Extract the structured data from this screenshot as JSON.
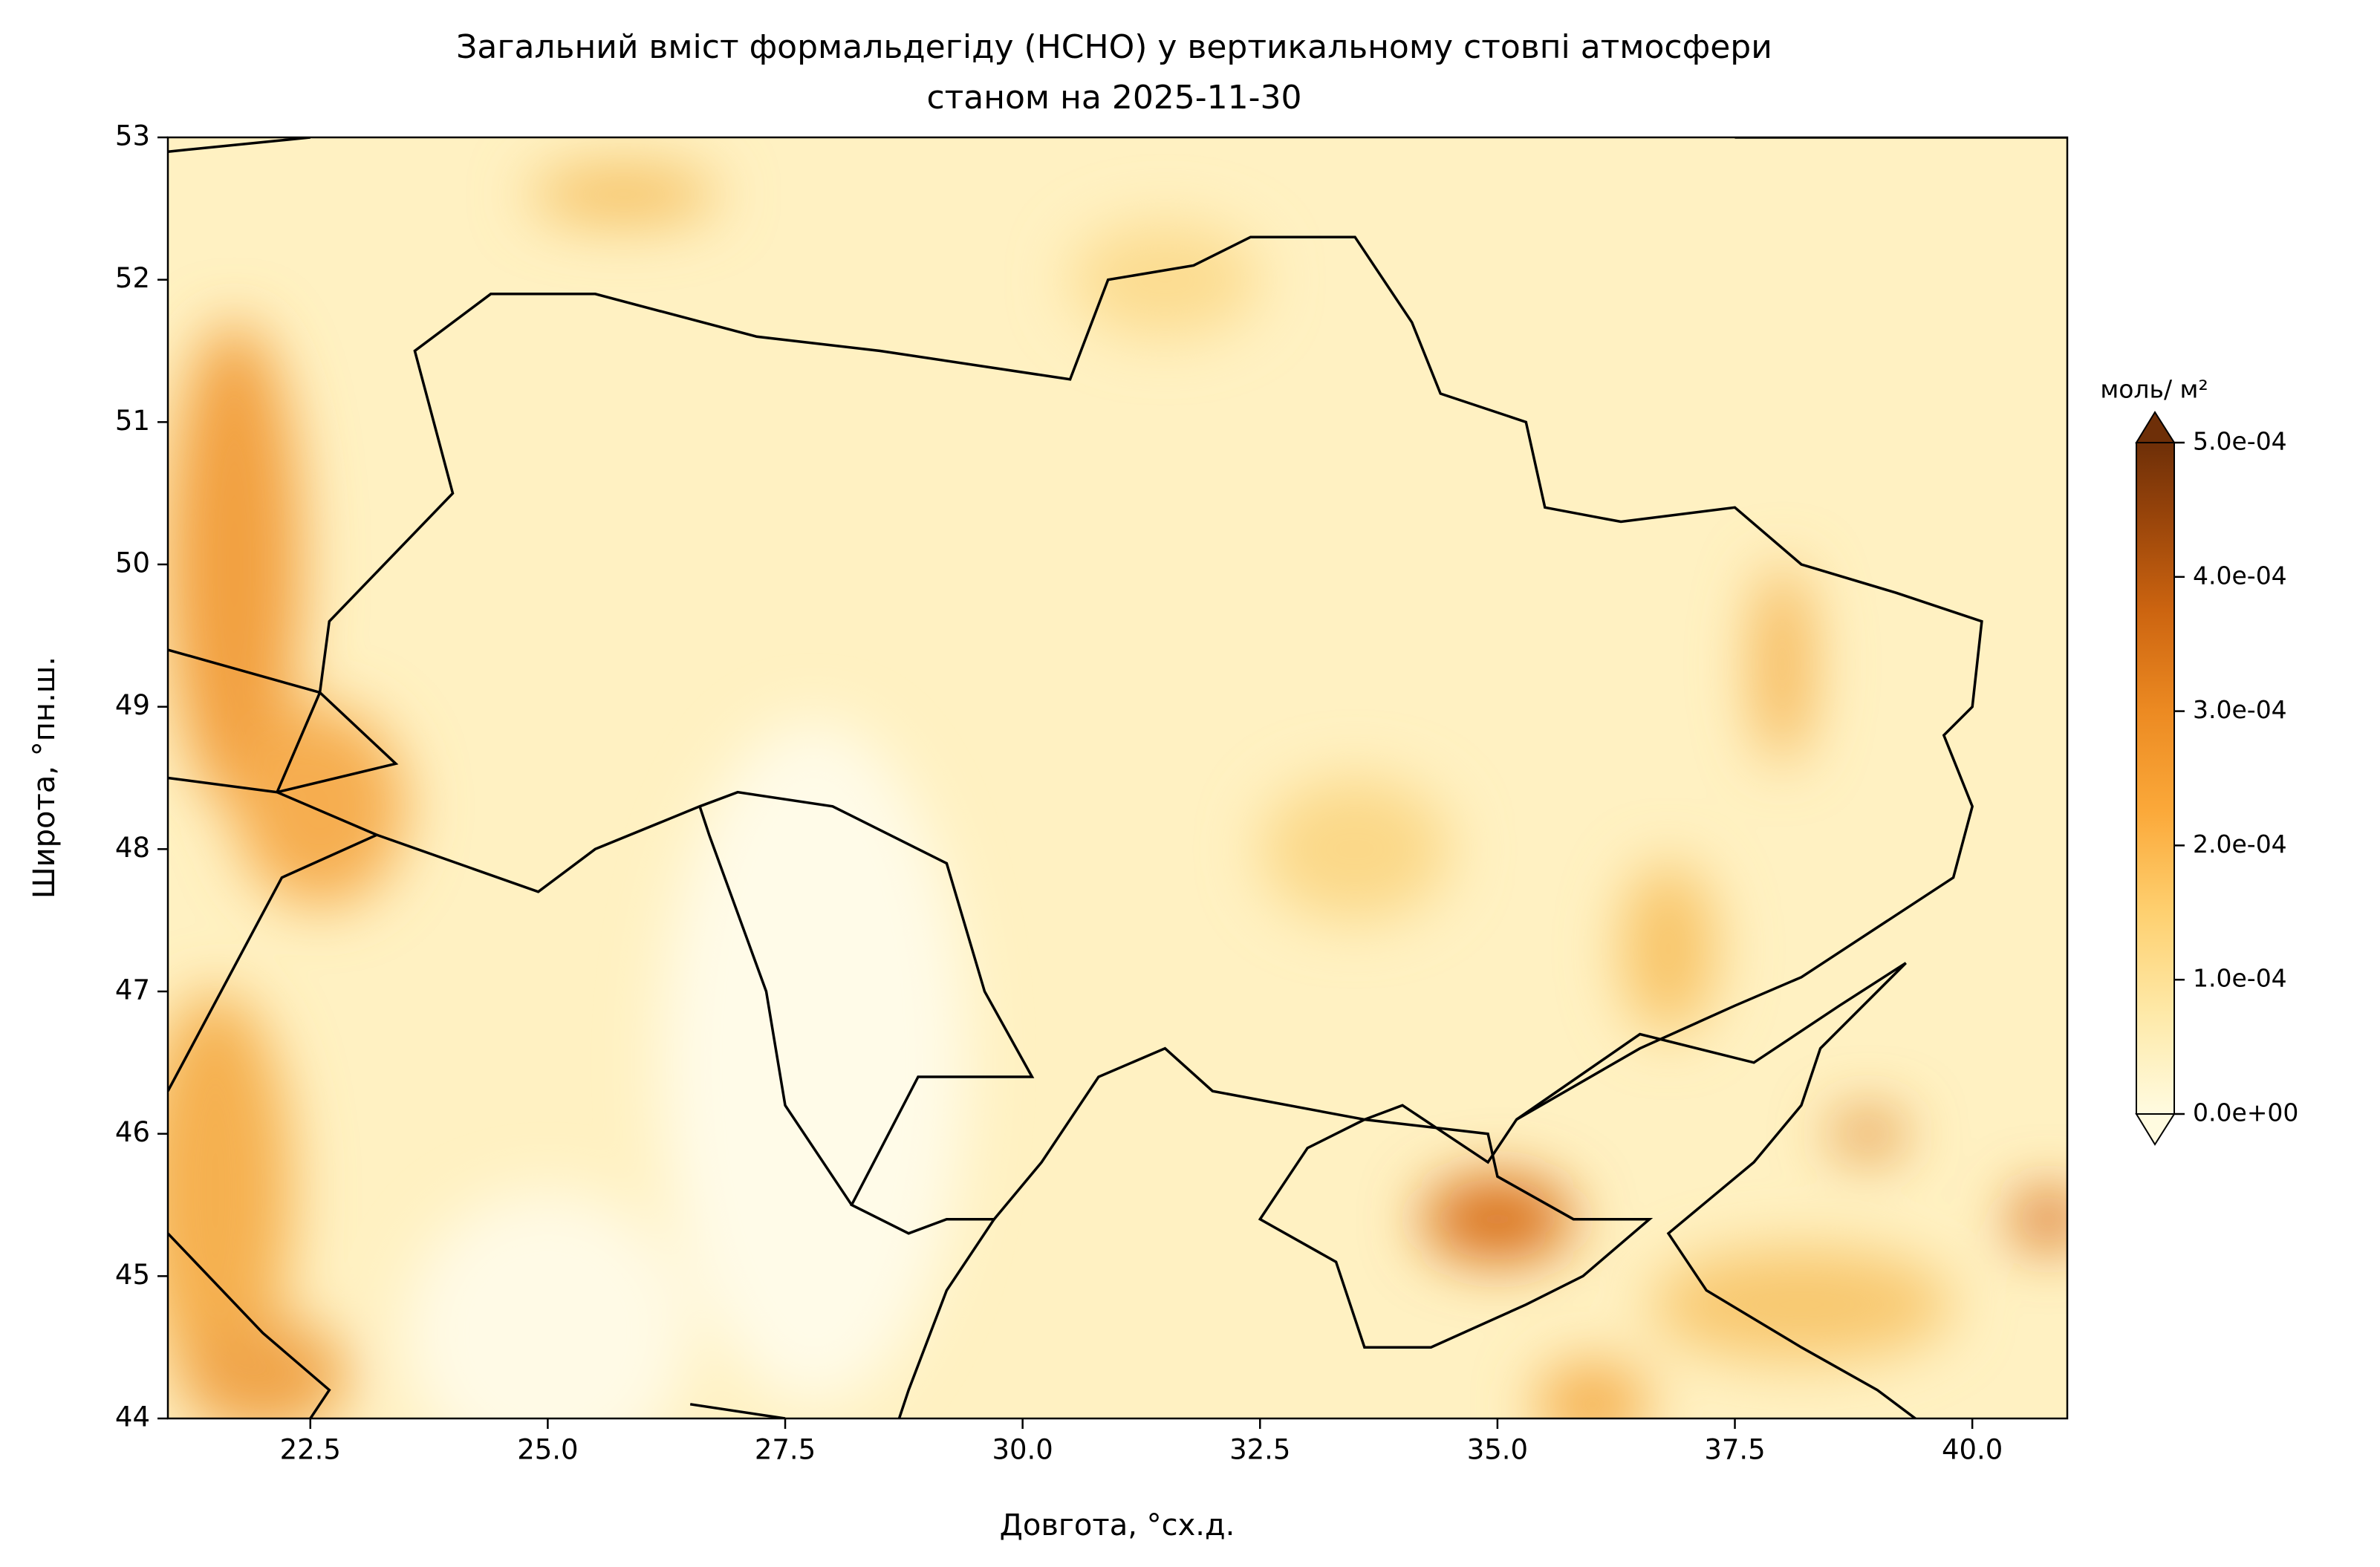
{
  "chart_data": {
    "type": "contour-map",
    "title": "Загальний вміст формальдегіду (HCHO) у вертикальному стовпі атмосфери",
    "subtitle": "станом на 2025-11-30",
    "x_label": "Довгота, °сх.д.",
    "y_label": "Широта, °пн.ш.",
    "xlim": [
      21,
      41
    ],
    "ylim": [
      44,
      53
    ],
    "xticks": [
      {
        "value": 22.5,
        "label": "22.5"
      },
      {
        "value": 25,
        "label": "25.0"
      },
      {
        "value": 27.5,
        "label": "27.5"
      },
      {
        "value": 30,
        "label": "30.0"
      },
      {
        "value": 32.5,
        "label": "32.5"
      },
      {
        "value": 35,
        "label": "35.0"
      },
      {
        "value": 37.5,
        "label": "37.5"
      },
      {
        "value": 40,
        "label": "40.0"
      }
    ],
    "yticks": [
      44,
      45,
      46,
      47,
      48,
      49,
      50,
      51,
      52,
      53
    ],
    "colorbar": {
      "label": "моль/ м²",
      "clim": [
        0,
        0.0005
      ],
      "ticks": [
        {
          "value": 0,
          "label": "0.0e+00"
        },
        {
          "value": 0.0001,
          "label": "1.0e-04"
        },
        {
          "value": 0.0002,
          "label": "2.0e-04"
        },
        {
          "value": 0.0003,
          "label": "3.0e-04"
        },
        {
          "value": 0.0004,
          "label": "4.0e-04"
        },
        {
          "value": 0.0005,
          "label": "5.0e-04"
        }
      ]
    }
  }
}
